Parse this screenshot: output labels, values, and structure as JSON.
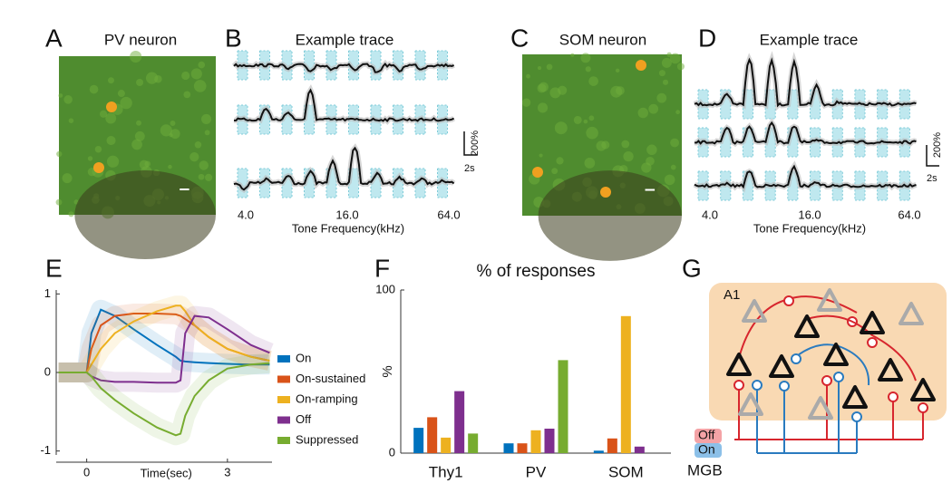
{
  "figure": {
    "panel_letters": [
      "A",
      "B",
      "C",
      "D",
      "E",
      "F",
      "G"
    ],
    "panel_a": {
      "title": "PV neuron"
    },
    "panel_b": {
      "title": "Example trace",
      "x_ticks": [
        "4.0",
        "16.0",
        "64.0"
      ],
      "x_label": "Tone Frequency(kHz)",
      "scale_y": "200%",
      "scale_x": "2s"
    },
    "panel_c": {
      "title": "SOM neuron"
    },
    "panel_d": {
      "title": "Example trace",
      "x_ticks": [
        "4.0",
        "16.0",
        "64.0"
      ],
      "x_label": "Tone Frequency(kHz)",
      "scale_y": "200%",
      "scale_x": "2s"
    },
    "panel_g": {
      "region": "A1",
      "inputs": [
        "Off",
        "On"
      ],
      "source": "MGB"
    }
  },
  "chart_data": [
    {
      "type": "line",
      "x_label": "Time(sec)",
      "x": [
        -0.6,
        -0.3,
        0,
        0.1,
        0.3,
        0.6,
        1,
        1.5,
        1.9,
        2.0,
        2.1,
        2.3,
        2.6,
        3,
        3.5,
        3.9
      ],
      "series": [
        {
          "name": "On",
          "color": "#0072bd",
          "values": [
            0,
            0,
            0,
            0.5,
            0.8,
            0.72,
            0.55,
            0.35,
            0.2,
            0.15,
            0.14,
            0.13,
            0.12,
            0.11,
            0.1,
            0.1
          ]
        },
        {
          "name": "On-sustained",
          "color": "#d95319",
          "values": [
            0,
            0,
            0,
            0.3,
            0.6,
            0.72,
            0.75,
            0.75,
            0.74,
            0.72,
            0.68,
            0.6,
            0.45,
            0.3,
            0.2,
            0.15
          ]
        },
        {
          "name": "On-ramping",
          "color": "#edb120",
          "values": [
            0,
            0,
            0,
            0.1,
            0.3,
            0.5,
            0.65,
            0.78,
            0.85,
            0.85,
            0.78,
            0.6,
            0.45,
            0.3,
            0.2,
            0.15
          ]
        },
        {
          "name": "Off",
          "color": "#7e2f8e",
          "values": [
            0,
            0,
            0,
            -0.05,
            -0.1,
            -0.12,
            -0.12,
            -0.13,
            -0.13,
            -0.1,
            0.5,
            0.72,
            0.7,
            0.55,
            0.35,
            0.25
          ]
        },
        {
          "name": "Suppressed",
          "color": "#77ac30",
          "values": [
            0,
            0,
            0,
            -0.05,
            -0.2,
            -0.35,
            -0.52,
            -0.7,
            -0.8,
            -0.78,
            -0.55,
            -0.3,
            -0.1,
            0.05,
            0.1,
            0.12
          ]
        }
      ],
      "xlim": [
        -0.65,
        3.95
      ],
      "ylim": [
        -1.05,
        1.05
      ],
      "xticks": [
        0,
        3
      ],
      "yticks": [
        -1,
        0,
        1
      ],
      "legend": "right"
    },
    {
      "type": "bar",
      "title": "% of responses",
      "y_label": "%",
      "categories": [
        "Thy1",
        "PV",
        "SOM"
      ],
      "series": [
        {
          "color": "#0072bd",
          "values": [
            15.5,
            6,
            1.5
          ]
        },
        {
          "color": "#d95319",
          "values": [
            22,
            6,
            9
          ]
        },
        {
          "color": "#edb120",
          "values": [
            9.5,
            14,
            84
          ]
        },
        {
          "color": "#7e2f8e",
          "values": [
            38,
            15,
            4
          ]
        },
        {
          "color": "#77ac30",
          "values": [
            12,
            57,
            0
          ]
        }
      ],
      "ylim": [
        0,
        100
      ],
      "yticks": [
        0,
        100
      ]
    }
  ]
}
